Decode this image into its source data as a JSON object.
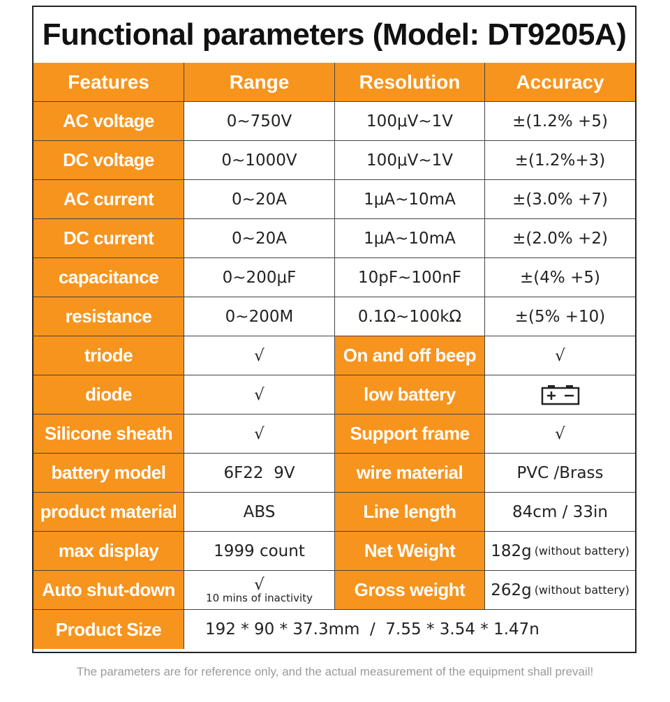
{
  "title": "Functional parameters (Model: DT9205A)",
  "headers": [
    "Features",
    "Range",
    "Resolution",
    "Accuracy"
  ],
  "rows": [
    {
      "feature": "AC voltage",
      "range": "0~750V",
      "resolution": "100μV~1V",
      "accuracy": "±(1.2% +5)"
    },
    {
      "feature": "DC voltage",
      "range": "0~1000V",
      "resolution": "100μV~1V",
      "accuracy": "±(1.2%+3)"
    },
    {
      "feature": "AC current",
      "range": "0~20A",
      "resolution": "1μA~10mA",
      "accuracy": "±(3.0% +7)"
    },
    {
      "feature": "DC current",
      "range": "0~20A",
      "resolution": "1μA~10mA",
      "accuracy": "±(2.0% +2)"
    },
    {
      "feature": "capacitance",
      "range": "0~200μF",
      "resolution": "10pF~100nF",
      "accuracy": "±(4% +5)"
    },
    {
      "feature": "resistance",
      "range": "0~200M",
      "resolution": "0.1Ω~100kΩ",
      "accuracy": "±(5% +10)"
    }
  ],
  "pairs": [
    {
      "f1": "triode",
      "v1": "√",
      "f2": "On and off beep",
      "v2": "√"
    },
    {
      "f1": "diode",
      "v1": "√",
      "f2": "low battery",
      "v2_icon": "battery-icon"
    },
    {
      "f1": "Silicone sheath",
      "v1": "√",
      "f2": "Support frame",
      "v2": "√"
    },
    {
      "f1": "battery model",
      "v1": "6F22  9V",
      "f2": "wire material",
      "v2": "PVC /Brass"
    },
    {
      "f1": "product material",
      "v1": "ABS",
      "f2": "Line length",
      "v2": "84cm / 33in"
    },
    {
      "f1": "max display",
      "v1": "1999 count",
      "f2": "Net Weight",
      "v2": "182g",
      "v2_note": "(without battery)"
    },
    {
      "f1": "Auto shut-down",
      "v1": "√",
      "v1_note": "10 mins of inactivity",
      "f2": "Gross weight",
      "v2": "262g",
      "v2_note": "(without battery)"
    }
  ],
  "size": {
    "feature": "Product Size",
    "value": "192 * 90 * 37.3mm  /  7.55 * 3.54 * 1.47n"
  },
  "footer": "The parameters are for reference only, and the actual measurement of the equipment shall prevail!",
  "colors": {
    "accent": "#f7941d",
    "text": "#222222",
    "footer": "#9a9a9a"
  }
}
